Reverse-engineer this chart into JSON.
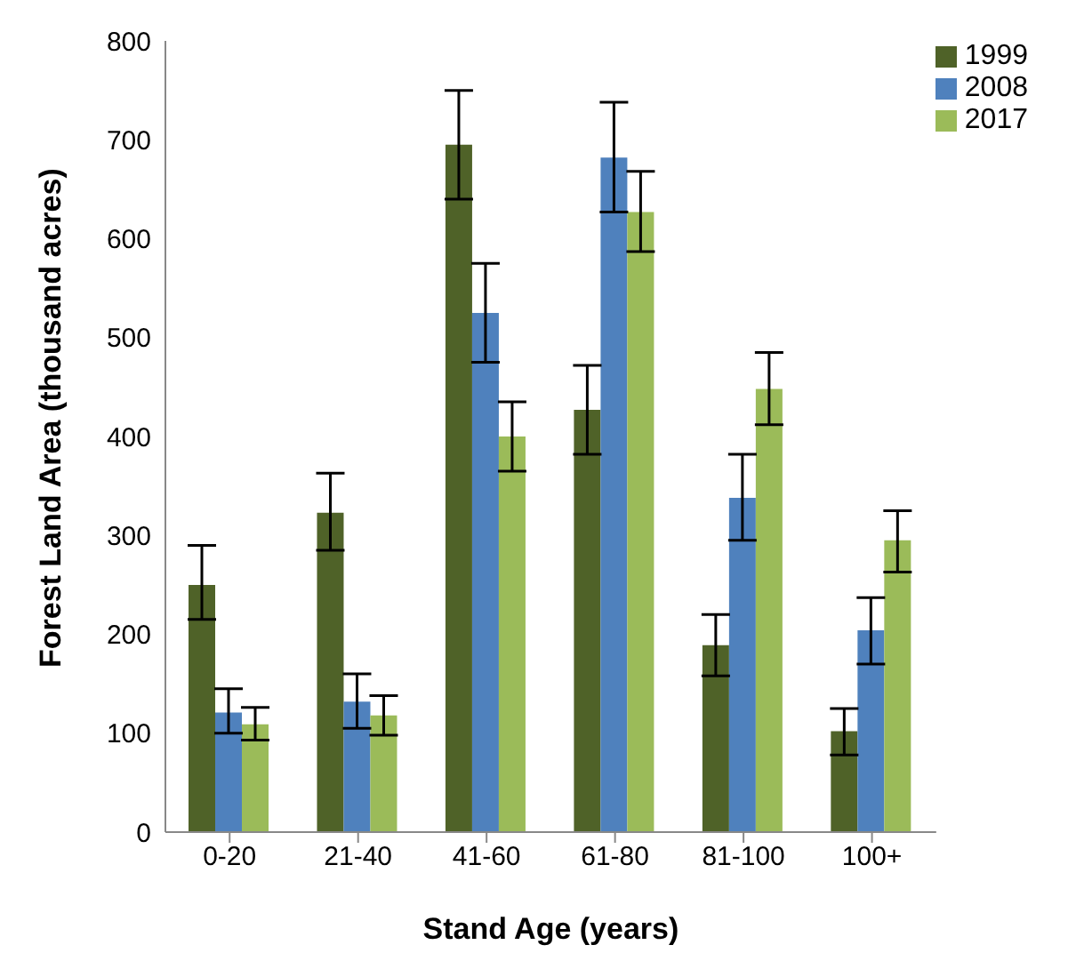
{
  "chart_data": {
    "type": "bar",
    "xlabel": "Stand Age (years)",
    "ylabel": "Forest Land Area (thousand acres)",
    "categories": [
      "0-20",
      "21-40",
      "41-60",
      "61-80",
      "81-100",
      "100+"
    ],
    "series": [
      {
        "name": "1999",
        "color": "#4f6228",
        "values": [
          250,
          323,
          695,
          427,
          189,
          102
        ],
        "errors": [
          [
            215,
            290
          ],
          [
            285,
            363
          ],
          [
            640,
            750
          ],
          [
            382,
            472
          ],
          [
            158,
            220
          ],
          [
            78,
            125
          ]
        ]
      },
      {
        "name": "2008",
        "color": "#4f81bd",
        "values": [
          121,
          132,
          525,
          682,
          338,
          204
        ],
        "errors": [
          [
            100,
            145
          ],
          [
            105,
            160
          ],
          [
            475,
            575
          ],
          [
            627,
            738
          ],
          [
            295,
            382
          ],
          [
            170,
            237
          ]
        ]
      },
      {
        "name": "2017",
        "color": "#9bbb59",
        "values": [
          109,
          118,
          400,
          627,
          448,
          295
        ],
        "errors": [
          [
            93,
            126
          ],
          [
            98,
            138
          ],
          [
            365,
            435
          ],
          [
            587,
            668
          ],
          [
            412,
            485
          ],
          [
            263,
            325
          ]
        ]
      }
    ],
    "ylim": [
      0,
      800
    ],
    "yticks": [
      0,
      100,
      200,
      300,
      400,
      500,
      600,
      700,
      800
    ],
    "grid": false,
    "legend": "top right"
  }
}
